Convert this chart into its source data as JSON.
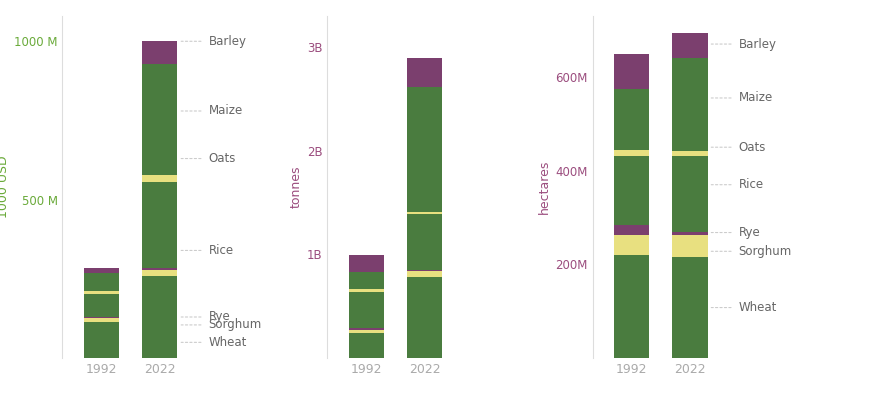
{
  "crops": [
    "Wheat",
    "Sorghum",
    "Rye",
    "Rice",
    "Oats",
    "Maize",
    "Barley"
  ],
  "crop_colors": [
    "#4a7c3f",
    "#e8e080",
    "#7b3f6e",
    "#4a7c3f",
    "#e8e080",
    "#4a7c3f",
    "#7b3f6e"
  ],
  "val_1992": [
    115000000.0,
    12000000.0,
    4000000.0,
    70000000.0,
    12000000.0,
    55000000.0,
    17000000.0
  ],
  "val_2022": [
    260000000.0,
    18000000.0,
    8000000.0,
    270000000.0,
    22000000.0,
    350000000.0,
    72000000.0
  ],
  "prod_1992": [
    240000000.0,
    35000000.0,
    18000000.0,
    350000000.0,
    25000000.0,
    160000000.0,
    170000000.0
  ],
  "prod_2022": [
    780000000.0,
    60000000.0,
    8000000.0,
    540000000.0,
    25000000.0,
    1200000000.0,
    280000000.0
  ],
  "area_1992": [
    220000000.0,
    42000000.0,
    22000000.0,
    148000000.0,
    13000000.0,
    130000000.0,
    73000000.0
  ],
  "area_2022": [
    215000000.0,
    48000000.0,
    7000000.0,
    162000000.0,
    9000000.0,
    200000000.0,
    52000000.0
  ],
  "bg_color": "#ffffff",
  "green": "#4a7c3f",
  "yellow": "#e8e080",
  "purple": "#7b3f6e",
  "axis_color_left": "#6aaa3a",
  "axis_color_mid": "#9b4d7e",
  "axis_color_right": "#9b4d7e",
  "text_color": "#aaaaaa",
  "label_color": "#666666"
}
